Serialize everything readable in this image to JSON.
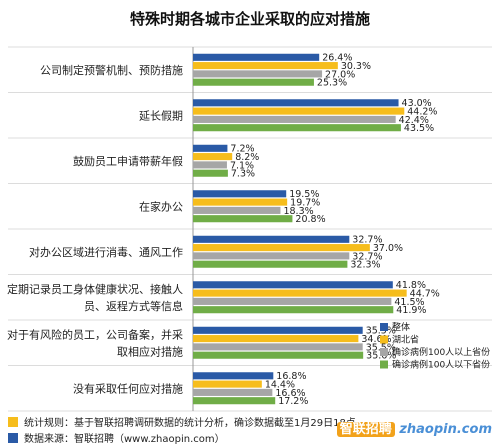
{
  "chart_data": {
    "type": "bar",
    "orientation": "horizontal",
    "title": "特殊时期各城市企业采取的应对措施",
    "categories": [
      [
        "公司制定预警机制、预防措施"
      ],
      [
        "延长假期"
      ],
      [
        "鼓励员工申请带薪年假"
      ],
      [
        "在家办公"
      ],
      [
        "对办公区域进行消毒、通风工作"
      ],
      [
        "定期记录员工身体健康状况、接触人",
        "员、返程方式等信息"
      ],
      [
        "对于有风险的员工，公司备案，并采",
        "取相应对措施"
      ],
      [
        "没有采取任何应对措施"
      ]
    ],
    "series": [
      {
        "name": "整体",
        "color": "#2a5aa6",
        "values": [
          26.4,
          43.0,
          7.2,
          19.5,
          32.7,
          41.8,
          35.5,
          16.8
        ]
      },
      {
        "name": "湖北省",
        "color": "#f6bd1c",
        "values": [
          30.3,
          44.2,
          8.2,
          19.7,
          37.0,
          44.7,
          34.6,
          14.4
        ]
      },
      {
        "name": "确诊病例100人以上省份",
        "color": "#a6a6a6",
        "values": [
          27.0,
          42.4,
          7.1,
          18.3,
          32.7,
          41.5,
          35.5,
          16.6
        ]
      },
      {
        "name": "确诊病例100人以下省份",
        "color": "#70ad47",
        "values": [
          25.3,
          43.5,
          7.3,
          20.8,
          32.3,
          41.9,
          35.6,
          17.2
        ]
      }
    ],
    "xlim": [
      0,
      50
    ],
    "legend_position": "bottom-right",
    "grid": true
  },
  "footer": {
    "rule": "统计规则：基于智联招聘调研数据的统计分析，确诊数据截至1月29日18点",
    "source": "数据来源：智联招聘（www.zhaopin.com）",
    "rule_color": "#f6bd1c",
    "source_color": "#2a5aa6"
  },
  "logo": {
    "latin": "zhaopin.com",
    "chinese": "智联招聘"
  }
}
